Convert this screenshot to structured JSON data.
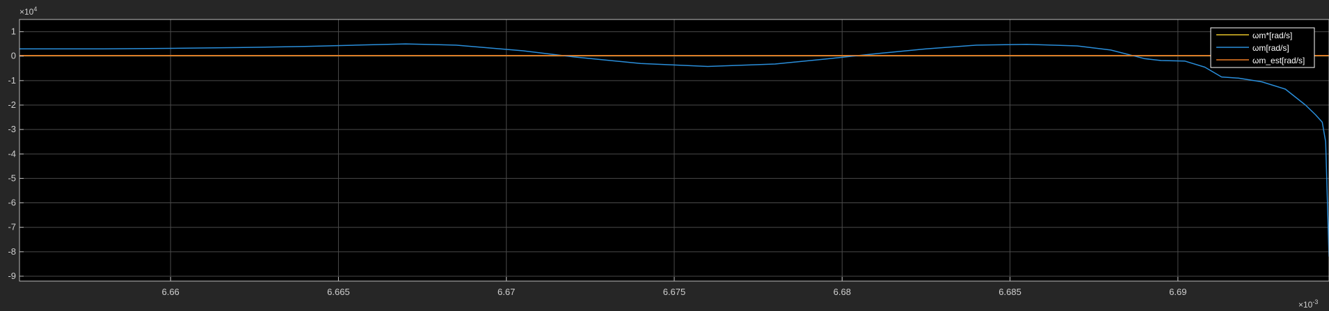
{
  "chart_data": {
    "type": "line",
    "grid": true,
    "legend_position": "top-right",
    "x_multiplier_label": "×10",
    "x_multiplier_exp": "-3",
    "y_multiplier_label": "×10",
    "y_multiplier_exp": "4",
    "xlim": [
      6.6555,
      6.6945
    ],
    "ylim": [
      -9.2,
      1.5
    ],
    "x_ticks": [
      6.66,
      6.665,
      6.67,
      6.675,
      6.68,
      6.685,
      6.69
    ],
    "x_tick_labels": [
      "6.66",
      "6.665",
      "6.67",
      "6.675",
      "6.68",
      "6.685",
      "6.69"
    ],
    "y_ticks": [
      1,
      0,
      -1,
      -2,
      -3,
      -4,
      -5,
      -6,
      -7,
      -8,
      -9
    ],
    "y_tick_labels": [
      "1",
      "0",
      "-1",
      "-2",
      "-3",
      "-4",
      "-5",
      "-6",
      "-7",
      "-8",
      "-9"
    ],
    "series": [
      {
        "name": "ωm*[rad/s]",
        "color": "#e6c229",
        "x": [
          6.6555,
          6.6945
        ],
        "y": [
          0.02,
          0.02
        ]
      },
      {
        "name": "ωm[rad/s]",
        "color": "#2a8fdc",
        "x": [
          6.6555,
          6.658,
          6.66,
          6.662,
          6.664,
          6.6655,
          6.667,
          6.6685,
          6.6705,
          6.672,
          6.674,
          6.676,
          6.678,
          6.6795,
          6.681,
          6.6825,
          6.684,
          6.6855,
          6.687,
          6.688,
          6.689,
          6.6895,
          6.6902,
          6.6908,
          6.6913,
          6.6918,
          6.6925,
          6.6932,
          6.6938,
          6.6941,
          6.6943,
          6.6944,
          6.6945
        ],
        "y": [
          0.3,
          0.3,
          0.32,
          0.35,
          0.4,
          0.45,
          0.5,
          0.45,
          0.22,
          -0.03,
          -0.3,
          -0.42,
          -0.32,
          -0.12,
          0.1,
          0.3,
          0.45,
          0.48,
          0.42,
          0.25,
          -0.1,
          -0.18,
          -0.2,
          -0.45,
          -0.85,
          -0.9,
          -1.05,
          -1.35,
          -2.0,
          -2.4,
          -2.7,
          -3.5,
          -8.2
        ]
      },
      {
        "name": "ωm_est[rad/s]",
        "color": "#f07d24",
        "x": [
          6.6555,
          6.6945
        ],
        "y": [
          0.03,
          0.03
        ]
      }
    ]
  }
}
